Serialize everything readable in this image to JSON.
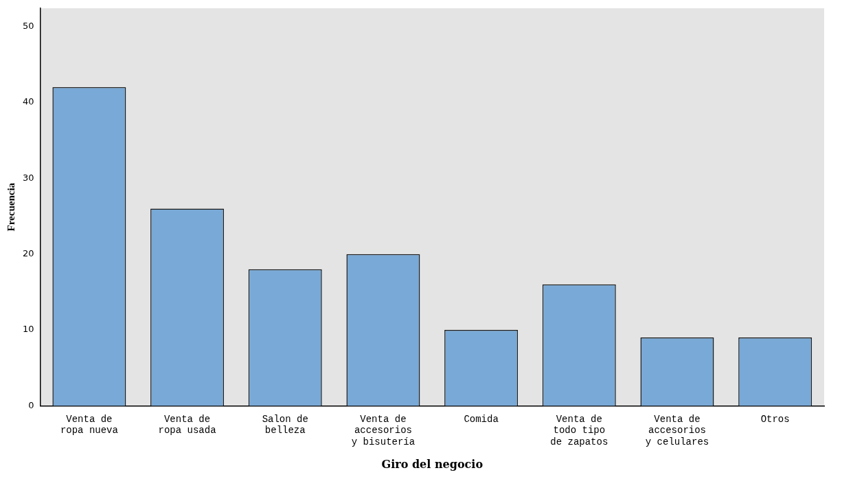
{
  "chart_data": {
    "type": "bar",
    "xlabel": "Giro del negocio",
    "ylabel": "Frecuencia",
    "categories": [
      "Venta de ropa nueva",
      "Venta de ropa usada",
      "Salon de belleza",
      "Venta de accesorios y bisutería",
      "Comida",
      "Venta de todo tipo de zapatos",
      "Venta de accesorios y celulares",
      "Otros"
    ],
    "values": [
      42,
      26,
      18,
      20,
      10,
      16,
      9,
      9
    ],
    "color": "#79a9d6",
    "ylim": [
      0,
      52.4
    ],
    "yticks": [
      0,
      10,
      20,
      30,
      40,
      50
    ],
    "grid": false,
    "legend": false
  }
}
